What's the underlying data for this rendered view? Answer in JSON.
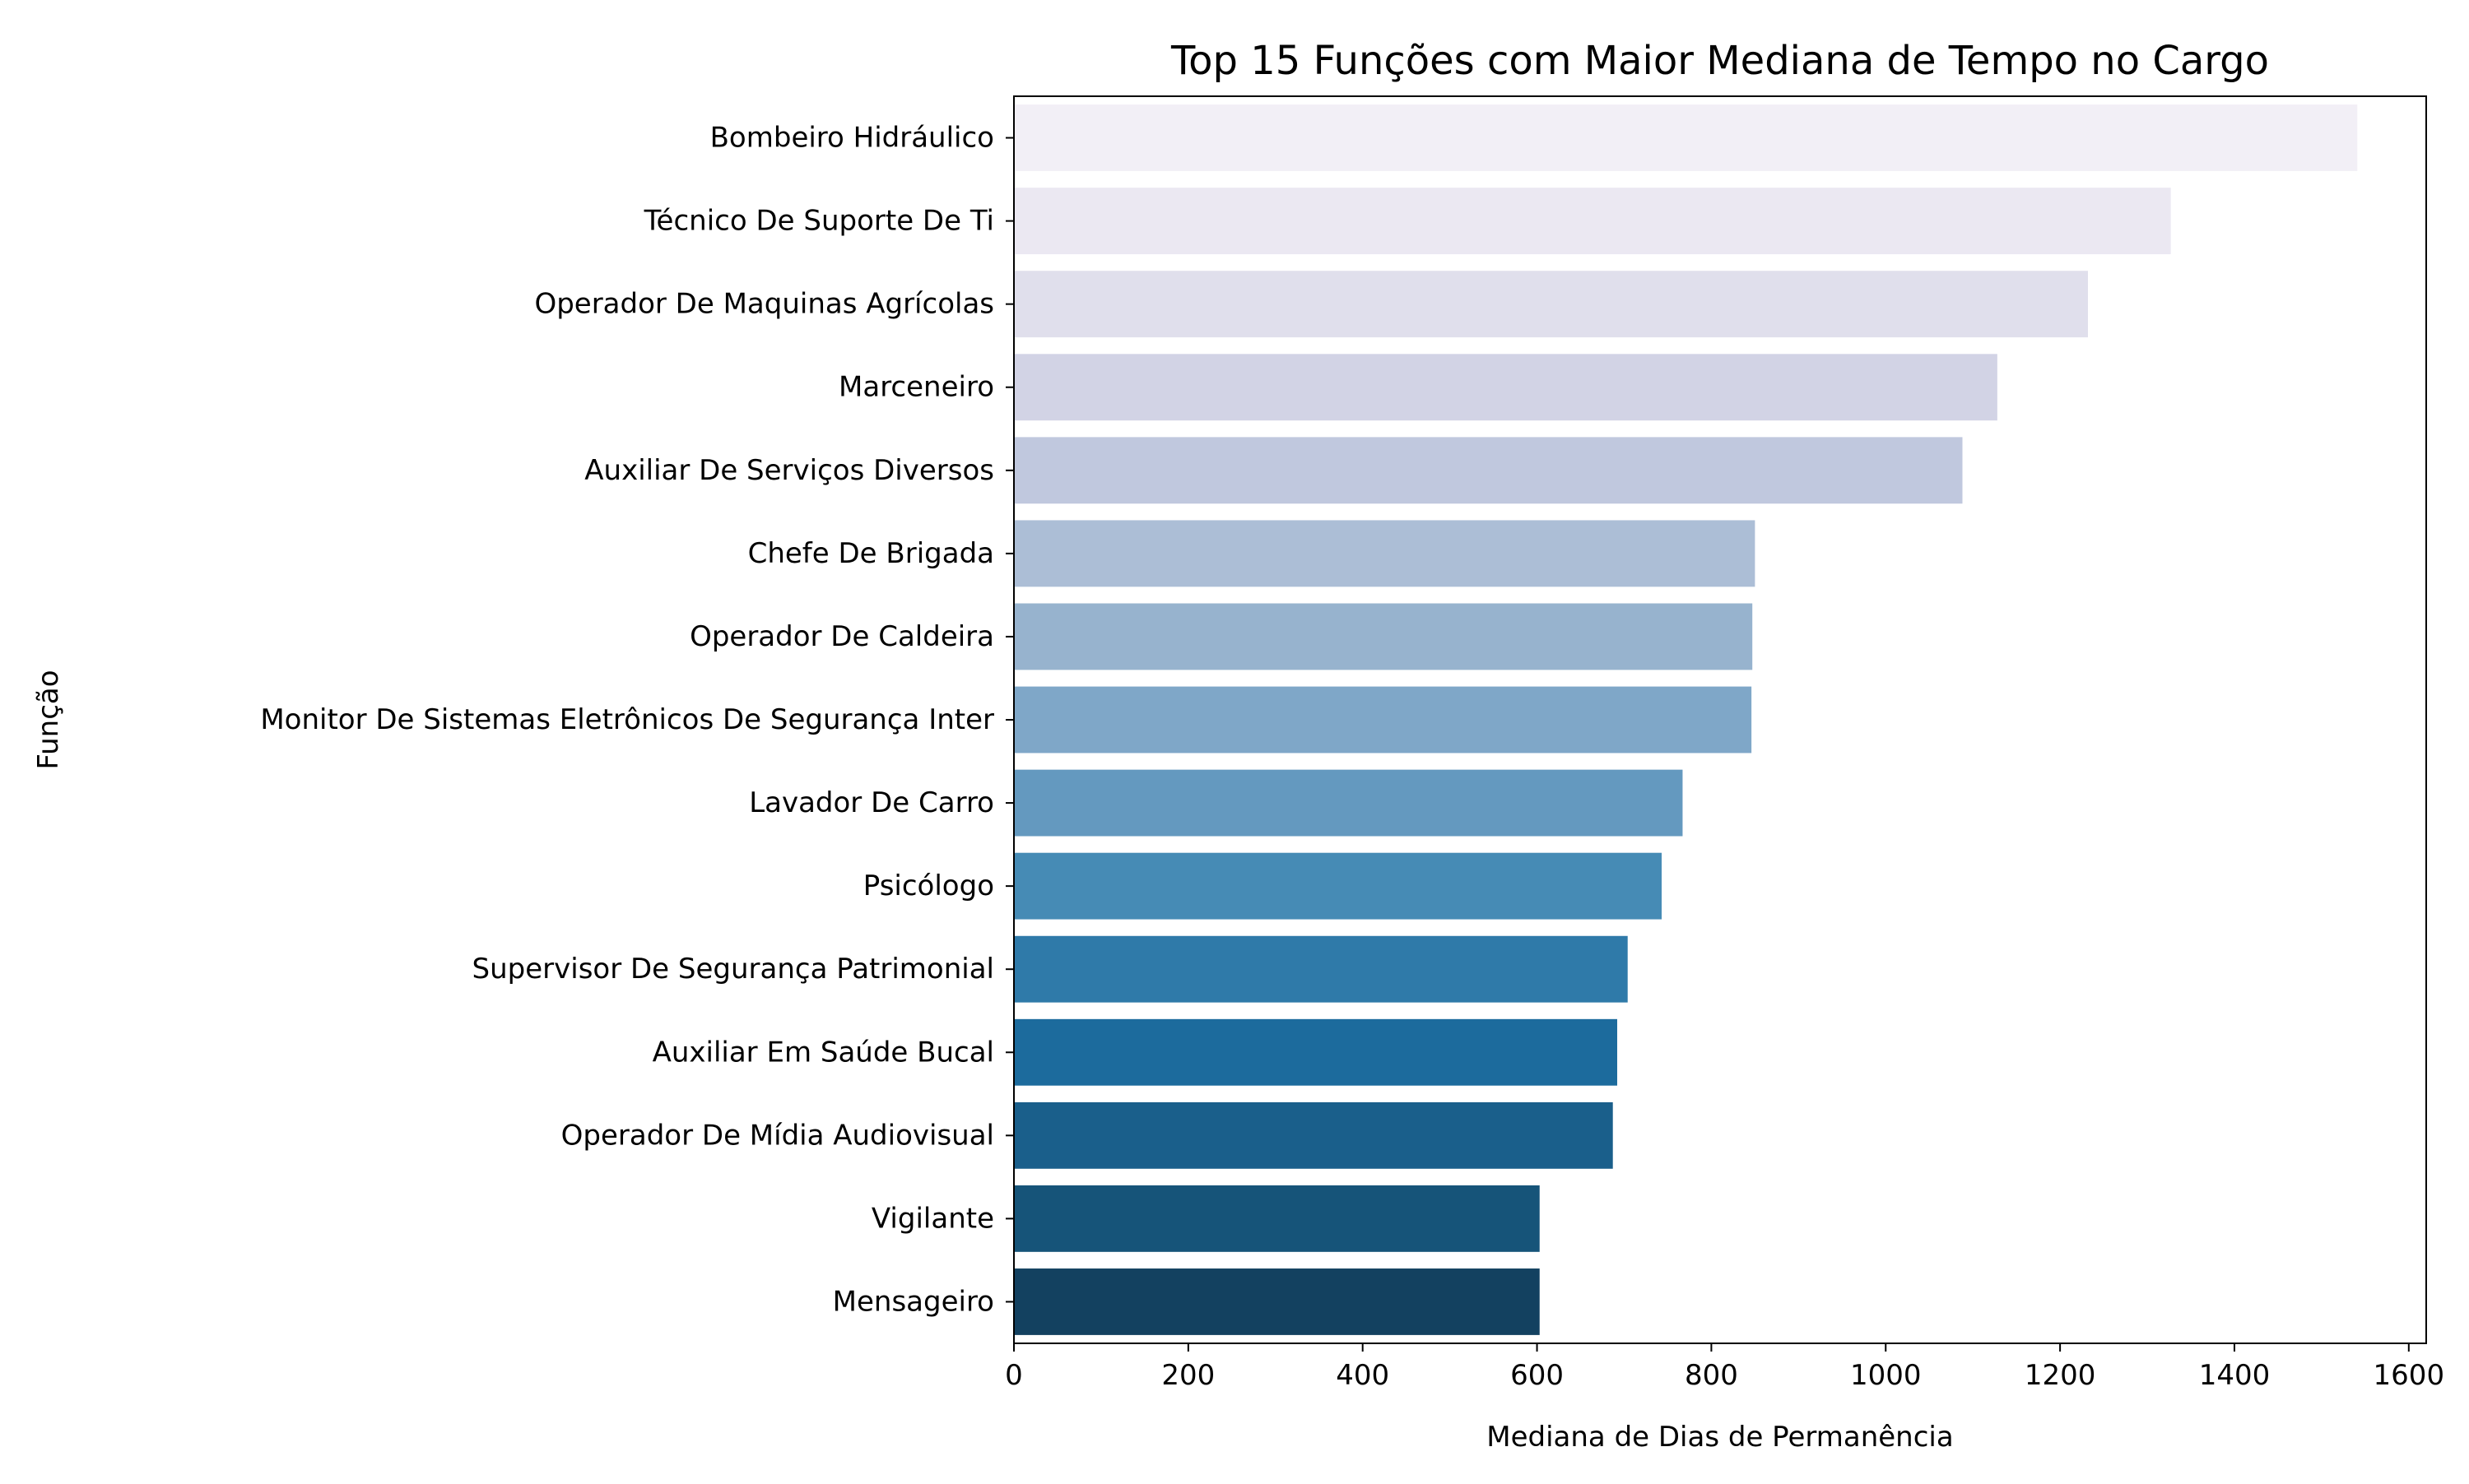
{
  "chart_data": {
    "type": "bar",
    "orientation": "horizontal",
    "title": "Top 15 Funções com Maior Mediana de Tempo no Cargo",
    "xlabel": "Mediana de Dias de Permanência",
    "ylabel": "Função",
    "xlim": [
      0,
      1620
    ],
    "xticks": [
      0,
      200,
      400,
      600,
      800,
      1000,
      1200,
      1400,
      1600
    ],
    "grid": false,
    "legend": "none",
    "categories": [
      "Bombeiro Hidráulico",
      "Técnico De Suporte De Ti",
      "Operador De Maquinas Agrícolas",
      "Marceneiro",
      "Auxiliar De Serviços Diversos",
      "Chefe De Brigada",
      "Operador De Caldeira",
      "Monitor De Sistemas Eletrônicos De Segurança Inter",
      "Lavador De Carro",
      "Psicólogo",
      "Supervisor De Segurança Patrimonial",
      "Auxiliar Em Saúde Bucal",
      "Operador De Mídia Audiovisual",
      "Vigilante",
      "Mensageiro"
    ],
    "values": [
      1541,
      1327,
      1232,
      1128,
      1088,
      850,
      847,
      846,
      767,
      743,
      704,
      692,
      687,
      603,
      603
    ],
    "colors": [
      "#f2eff6",
      "#ebe8f2",
      "#e0dfec",
      "#d2d3e5",
      "#c0c8de",
      "#acbed6",
      "#97b3ce",
      "#7fa7c8",
      "#6499bf",
      "#468bb5",
      "#2f7aa9",
      "#1c6b9d",
      "#1a5f8b",
      "#165479",
      "#134160"
    ]
  }
}
